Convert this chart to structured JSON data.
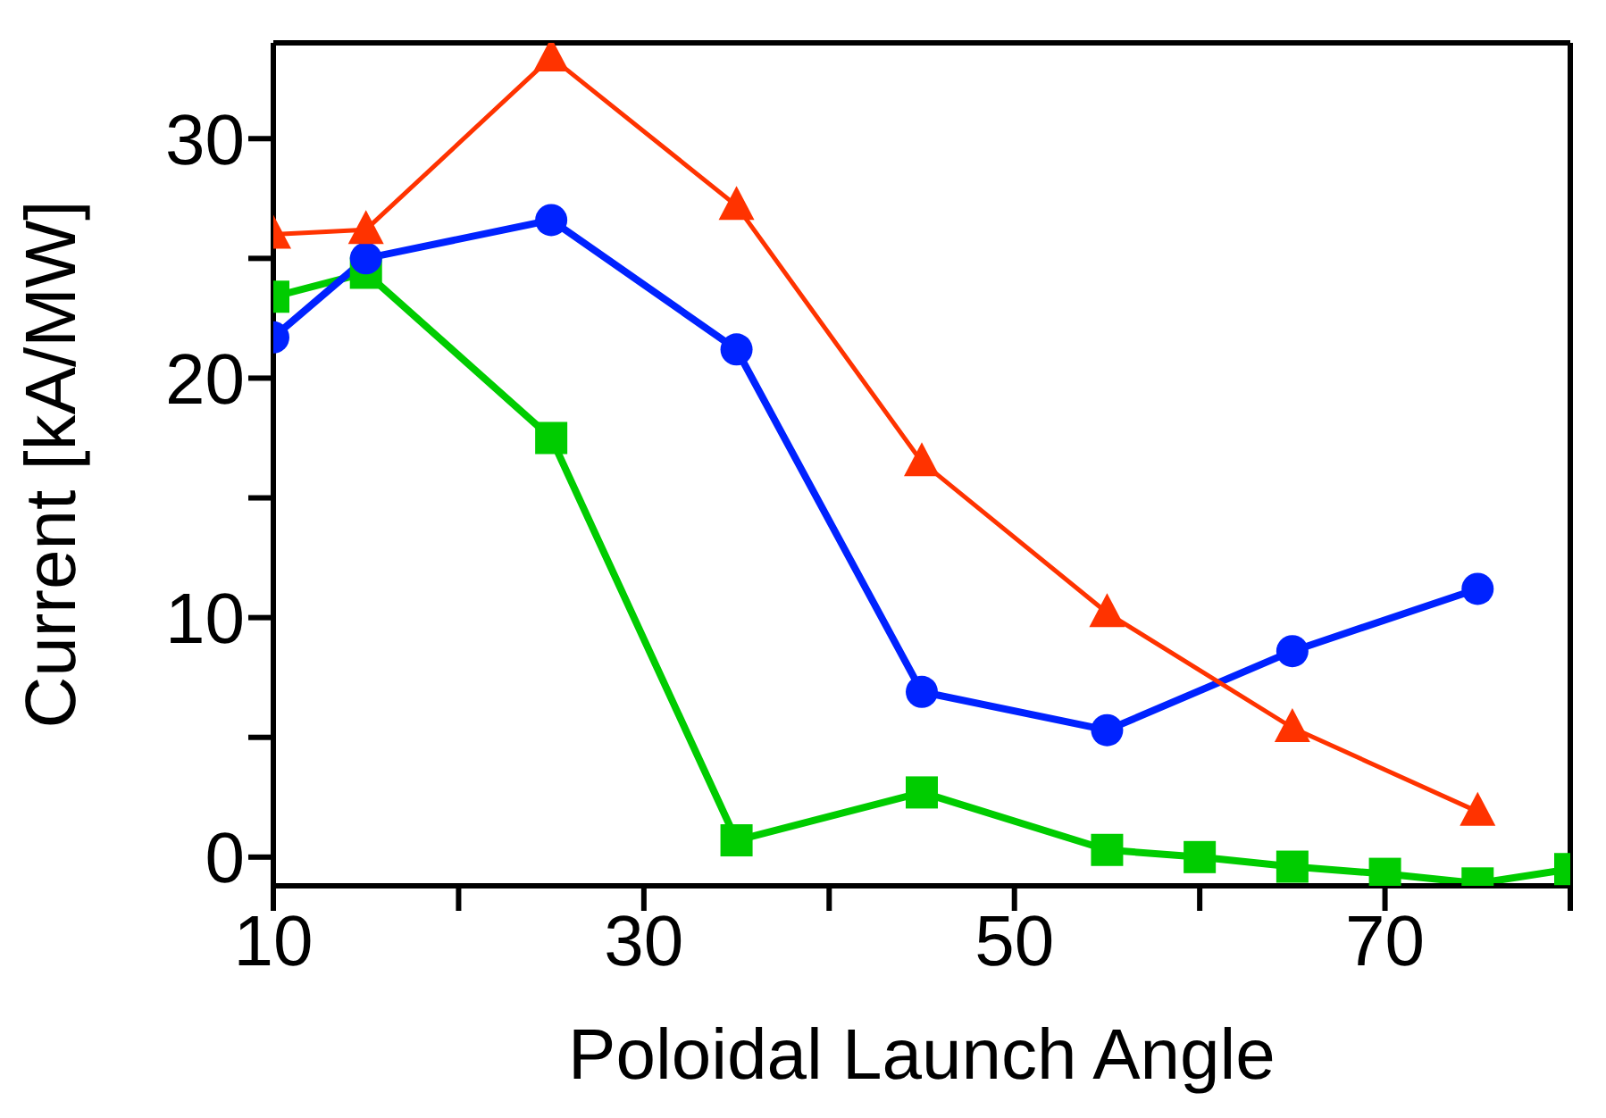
{
  "chart_data": {
    "type": "line",
    "xlabel": "Poloidal Launch Angle",
    "ylabel": "Current [kA/MW]",
    "xlim": [
      10,
      80
    ],
    "xticks": [
      10,
      {
        "value": 20,
        "label": null
      },
      30,
      {
        "value": 40,
        "label": null
      },
      50,
      {
        "value": 60,
        "label": null
      },
      70,
      {
        "value": 80,
        "label": null
      }
    ],
    "ylim": [
      -1.2,
      34
    ],
    "yticks": [
      0,
      {
        "value": 5,
        "label": null
      },
      10,
      {
        "value": 15,
        "label": null
      },
      20,
      {
        "value": 25,
        "label": null
      },
      30
    ],
    "grid": false,
    "legend": false,
    "line_style": "solid",
    "series": [
      {
        "color": "#ff3300",
        "marker": "triangle",
        "x": [
          10,
          15,
          25,
          35,
          45,
          55,
          65,
          75
        ],
        "values": [
          26.0,
          26.2,
          33.4,
          27.2,
          16.5,
          10.2,
          5.4,
          1.9
        ]
      },
      {
        "color": "#0022ff",
        "marker": "circle",
        "x": [
          10,
          15,
          25,
          35,
          45,
          55,
          65,
          75
        ],
        "values": [
          21.7,
          25.0,
          26.6,
          21.2,
          6.9,
          5.3,
          8.6,
          11.2
        ]
      },
      {
        "color": "#00cc00",
        "marker": "square",
        "x": [
          10,
          15,
          25,
          35,
          45,
          55,
          60,
          65,
          70,
          75,
          80
        ],
        "values": [
          23.4,
          24.4,
          17.5,
          0.7,
          2.7,
          0.3,
          0.0,
          -0.4,
          -0.7,
          -1.1,
          -0.5
        ]
      }
    ]
  }
}
